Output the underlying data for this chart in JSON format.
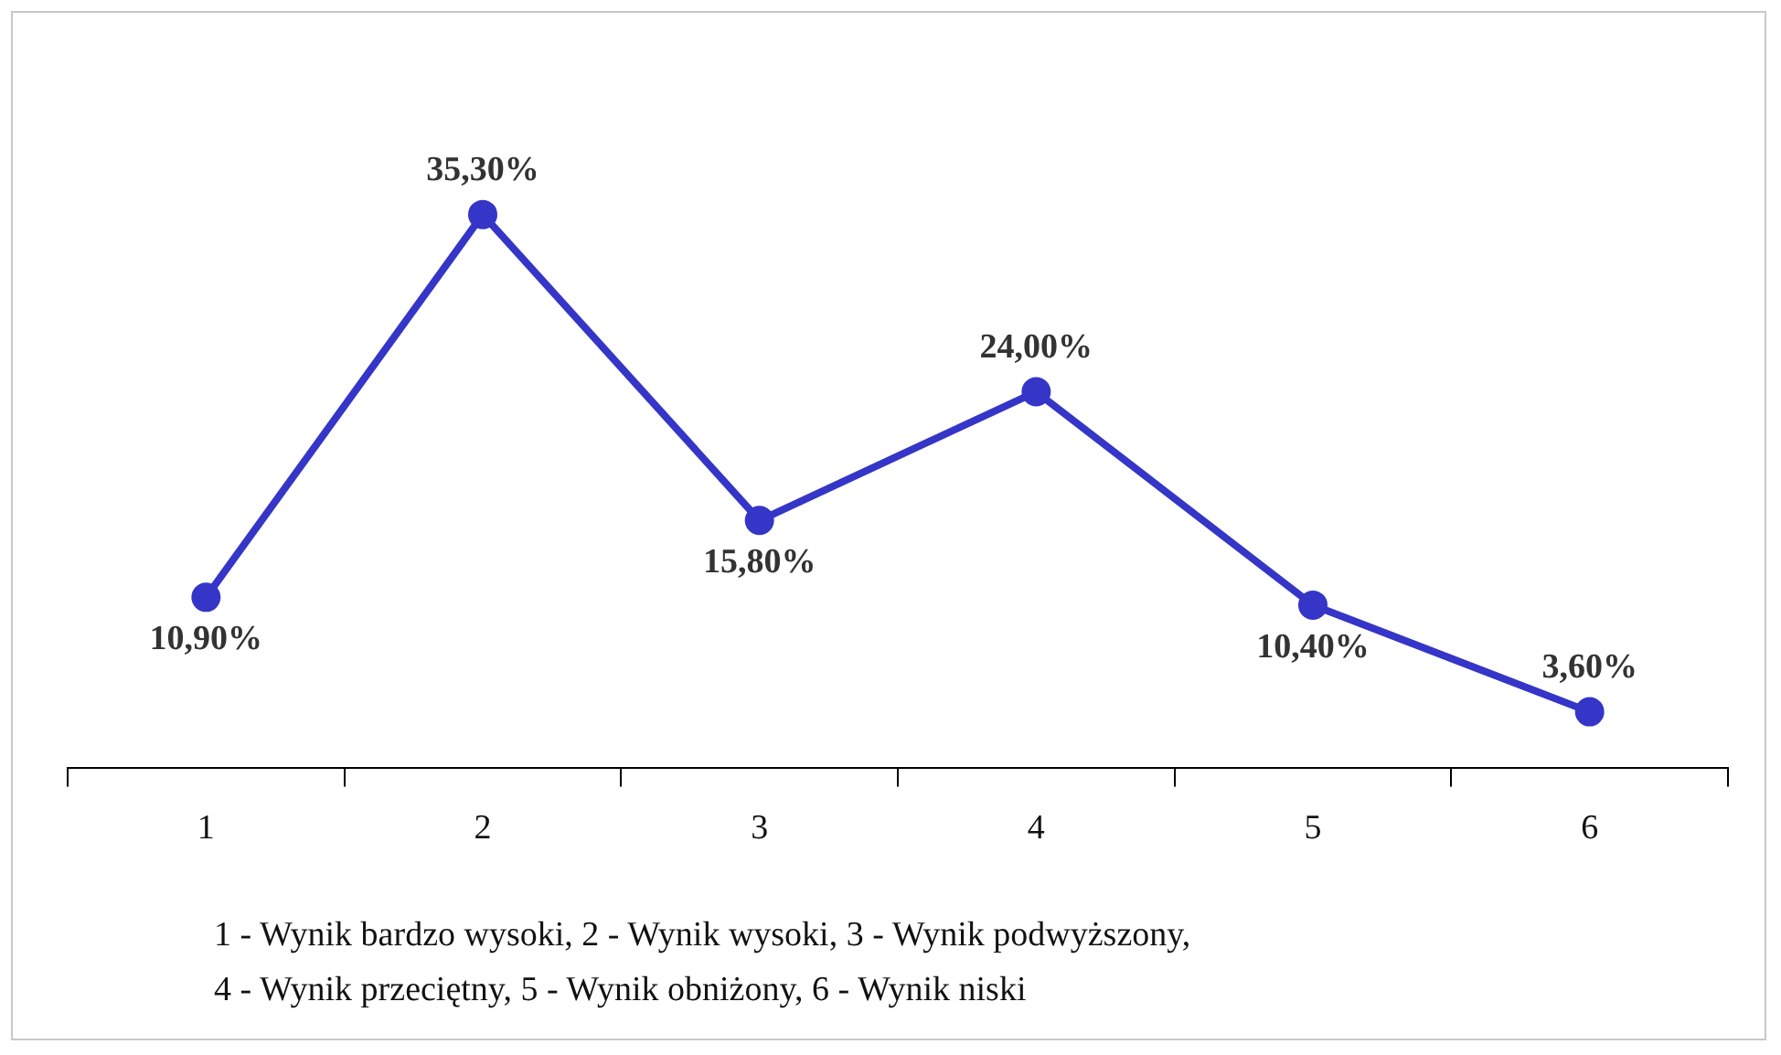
{
  "chart_data": {
    "type": "line",
    "categories": [
      "1",
      "2",
      "3",
      "4",
      "5",
      "6"
    ],
    "series": [
      {
        "color": "#3535c8",
        "values": [
          10.9,
          35.3,
          15.8,
          24.0,
          10.4,
          3.6
        ],
        "value_labels": [
          "10,90%",
          "35,30%",
          "15,80%",
          "24,00%",
          "10,40%",
          "3,60%"
        ]
      }
    ],
    "tick_labels": "x",
    "grid": false,
    "legend": false,
    "marker": "circle",
    "line_style": "solid",
    "annotations": [
      "1 - Wynik bardzo wysoki, 2 - Wynik wysoki, 3 - Wynik podwyższony,",
      "4 - Wynik przeciętny, 5 - Wynik obniżony, 6 - Wynik niski"
    ]
  }
}
